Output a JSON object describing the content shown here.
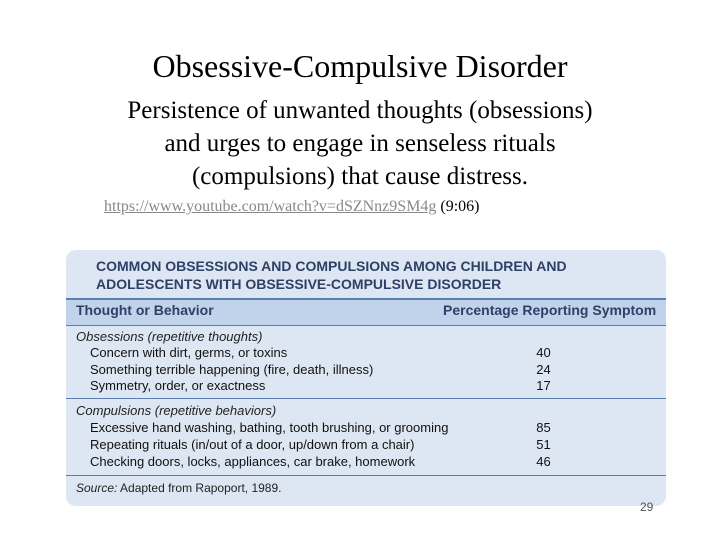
{
  "slide": {
    "title": "Obsessive-Compulsive Disorder",
    "body_lines": [
      "Persistence of unwanted thoughts (obsessions)",
      "and urges to engage in senseless rituals",
      "(compulsions) that cause distress."
    ],
    "link": "https://www.youtube.com/watch?v=dSZNnz9SM4g",
    "link_note": "(9:06)",
    "page_number": "29"
  },
  "table": {
    "title_lines": [
      "COMMON OBSESSIONS AND COMPULSIONS AMONG CHILDREN AND",
      "ADOLESCENTS WITH OBSESSIVE-COMPULSIVE DISORDER"
    ],
    "headers": [
      "Thought or Behavior",
      "Percentage Reporting Symptom"
    ],
    "sections": [
      {
        "label": "Obsessions (repetitive thoughts)",
        "rows": [
          [
            "Concern with dirt, germs, or toxins",
            40
          ],
          [
            "Something terrible happening (fire, death, illness)",
            24
          ],
          [
            "Symmetry, order, or exactness",
            17
          ]
        ]
      },
      {
        "label": "Compulsions (repetitive behaviors)",
        "rows": [
          [
            "Excessive hand washing, bathing, tooth brushing, or grooming",
            85
          ],
          [
            "Repeating rituals (in/out of a door, up/down from a chair)",
            51
          ],
          [
            "Checking doors, locks, appliances, car brake, homework",
            46
          ]
        ]
      }
    ],
    "source_label": "Source:",
    "source_text": "Adapted from Rapoport, 1989."
  }
}
